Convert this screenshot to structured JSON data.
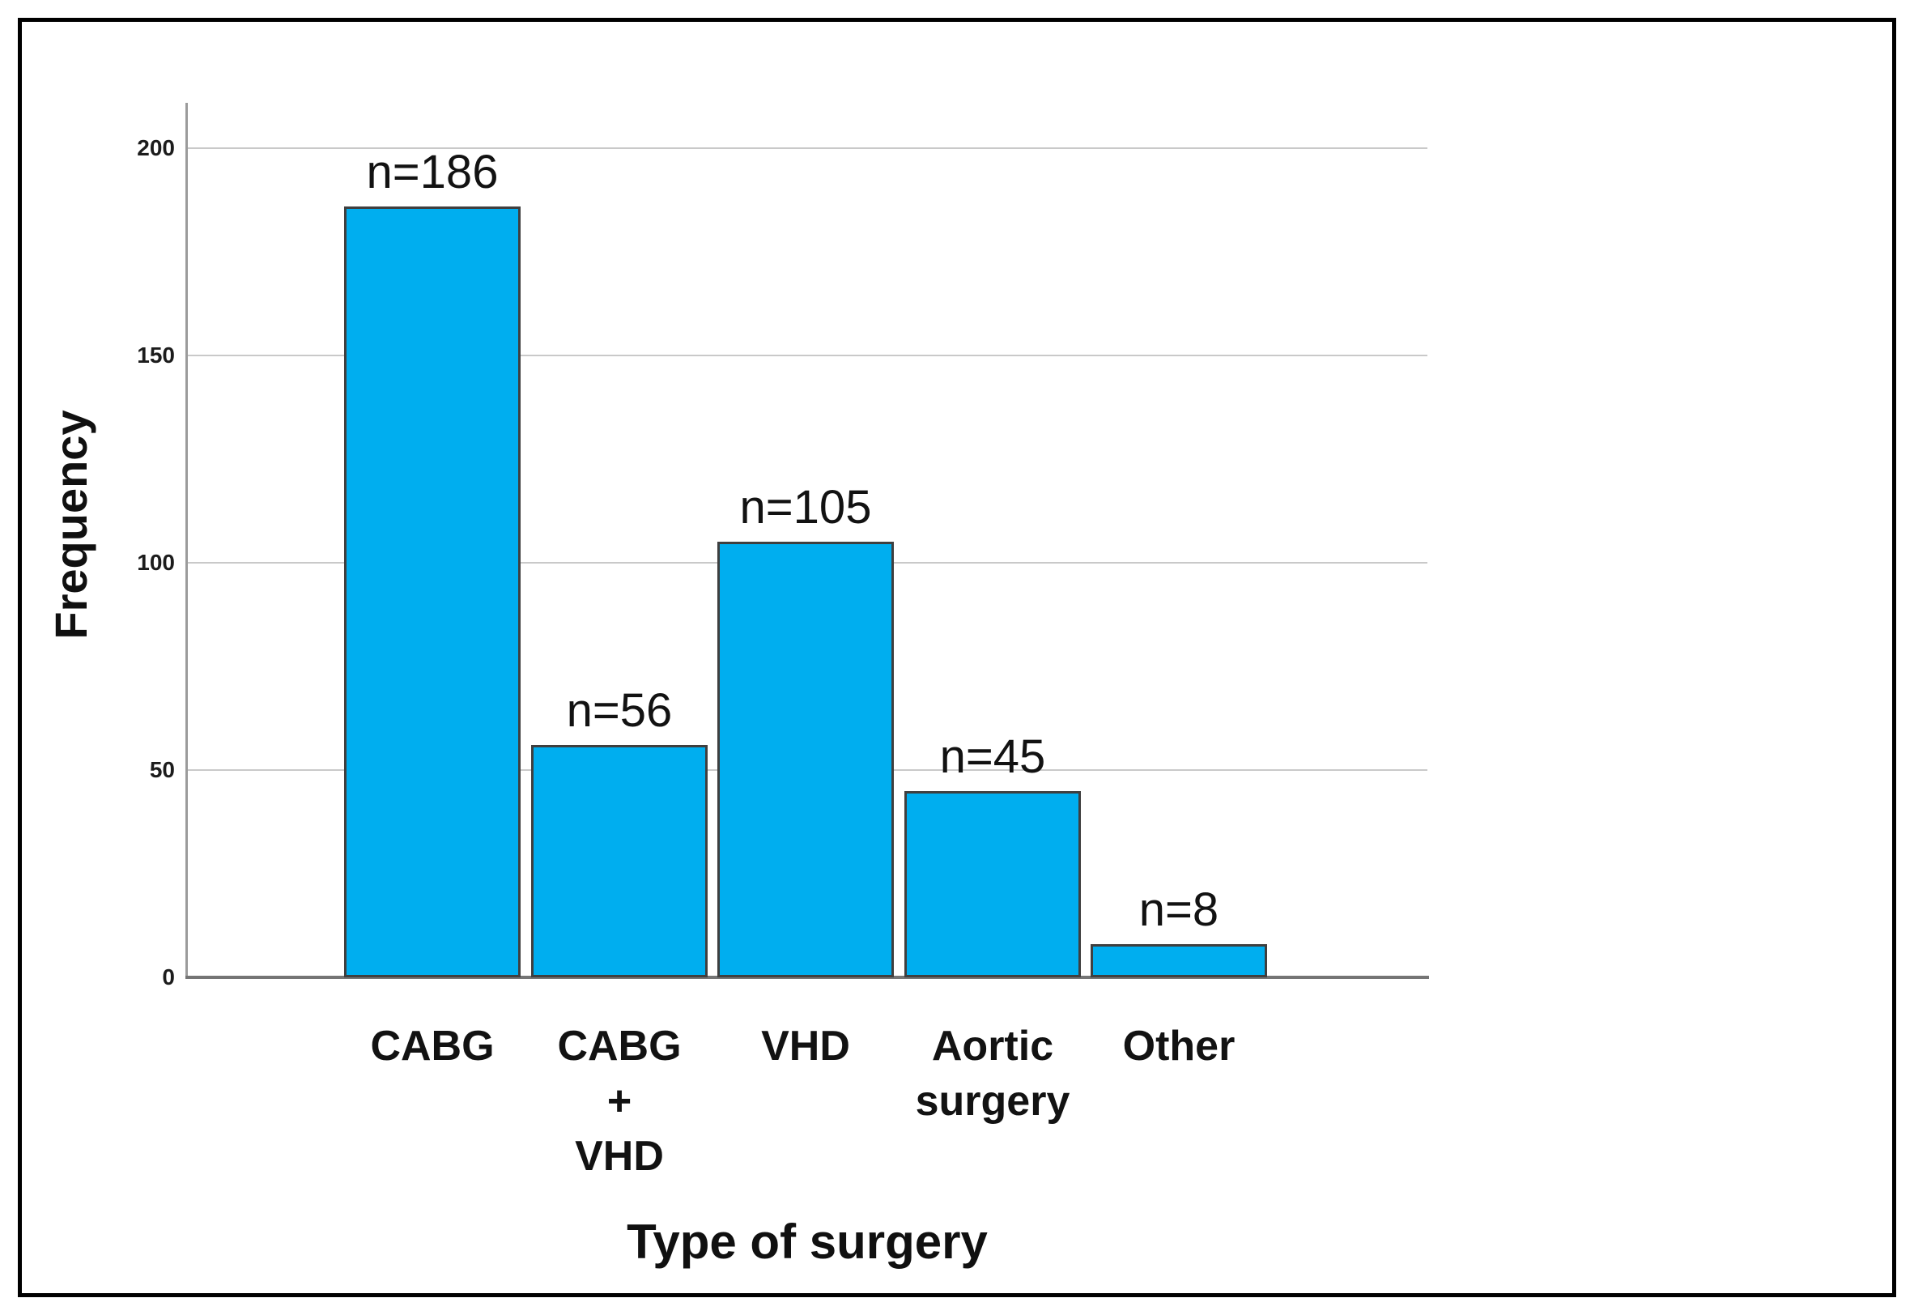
{
  "figure": {
    "background_color": "#ffffff",
    "frame_color": "#000000"
  },
  "chart_data": {
    "type": "bar",
    "title": "",
    "xlabel": "Type of surgery",
    "ylabel": "Frequency",
    "categories": [
      "CABG",
      "CABG + VHD",
      "VHD",
      "Aortic surgery",
      "Other"
    ],
    "category_label_lines": [
      [
        "CABG"
      ],
      [
        "CABG",
        "+",
        "VHD"
      ],
      [
        "VHD"
      ],
      [
        "Aortic",
        "surgery"
      ],
      [
        "Other"
      ]
    ],
    "values": [
      186,
      56,
      105,
      45,
      8
    ],
    "bar_value_labels": [
      "n=186",
      "n=56",
      "n=105",
      "n=45",
      "n=8"
    ],
    "yticks": [
      0,
      50,
      100,
      150,
      200
    ],
    "ylim": [
      0,
      211
    ],
    "grid": true,
    "legend_position": "none",
    "bar_fill_color": "#00AEEF",
    "bar_border_color": "#3F3F3F",
    "gridline_color": "#C9C9C9",
    "axis_line_color": "#9B9B9B",
    "baseline_color": "#757575",
    "text_color": "#121212"
  }
}
